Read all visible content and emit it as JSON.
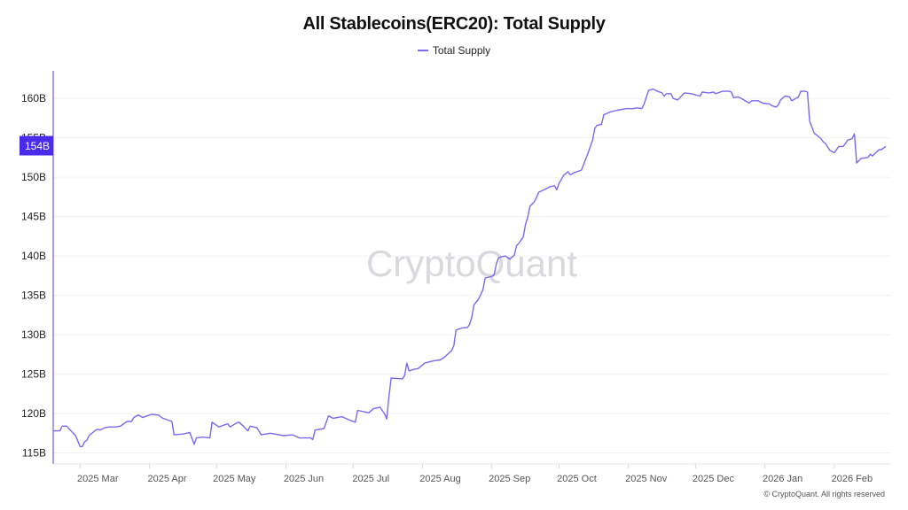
{
  "chart_data": {
    "type": "line",
    "title": "All Stablecoins(ERC20): Total Supply",
    "legend": [
      "Total Supply"
    ],
    "legend_position": "top-center",
    "xlabel": "",
    "ylabel": "",
    "x_unit": "days since 2025-03-01",
    "xlim": [
      -12,
      362
    ],
    "ylim": [
      113.6,
      163.5
    ],
    "grid": true,
    "color": "#7b68ee",
    "y_ticks": [
      {
        "value": 115,
        "label": "115B"
      },
      {
        "value": 120,
        "label": "120B"
      },
      {
        "value": 125,
        "label": "125B"
      },
      {
        "value": 130,
        "label": "130B"
      },
      {
        "value": 135,
        "label": "135B"
      },
      {
        "value": 140,
        "label": "140B"
      },
      {
        "value": 145,
        "label": "145B"
      },
      {
        "value": 150,
        "label": "150B"
      },
      {
        "value": 155,
        "label": "155B"
      },
      {
        "value": 160,
        "label": "160B"
      }
    ],
    "x_ticks": [
      {
        "value": 0,
        "label": "2025 Mar"
      },
      {
        "value": 31,
        "label": "2025 Apr"
      },
      {
        "value": 61,
        "label": "2025 May"
      },
      {
        "value": 92,
        "label": "2025 Jun"
      },
      {
        "value": 122,
        "label": "2025 Jul"
      },
      {
        "value": 153,
        "label": "2025 Aug"
      },
      {
        "value": 184,
        "label": "2025 Sep"
      },
      {
        "value": 214,
        "label": "2025 Oct"
      },
      {
        "value": 245,
        "label": "2025 Nov"
      },
      {
        "value": 275,
        "label": "2025 Dec"
      },
      {
        "value": 306,
        "label": "2026 Jan"
      },
      {
        "value": 337,
        "label": "2026 Feb"
      }
    ],
    "current_value": {
      "value": 154,
      "label": "154B"
    },
    "series": [
      {
        "name": "Total Supply",
        "points": [
          [
            -12,
            117.8
          ],
          [
            -9,
            117.8
          ],
          [
            -8,
            118.4
          ],
          [
            -6,
            118.4
          ],
          [
            -2,
            117.2
          ],
          [
            -1,
            116.5
          ],
          [
            0,
            115.8
          ],
          [
            1,
            115.8
          ],
          [
            2,
            116.4
          ],
          [
            3,
            116.6
          ],
          [
            4,
            117.2
          ],
          [
            7,
            117.9
          ],
          [
            8,
            118.0
          ],
          [
            9,
            117.9
          ],
          [
            11,
            118.2
          ],
          [
            13,
            118.3
          ],
          [
            16,
            118.3
          ],
          [
            18,
            118.4
          ],
          [
            21,
            119.0
          ],
          [
            23,
            119.0
          ],
          [
            24,
            119.5
          ],
          [
            26,
            119.8
          ],
          [
            28,
            119.5
          ],
          [
            30,
            119.7
          ],
          [
            32,
            119.9
          ],
          [
            35,
            119.8
          ],
          [
            37,
            119.4
          ],
          [
            41,
            119.0
          ],
          [
            42,
            117.3
          ],
          [
            46,
            117.4
          ],
          [
            49,
            117.6
          ],
          [
            51,
            116.1
          ],
          [
            52,
            116.9
          ],
          [
            55,
            117.0
          ],
          [
            58,
            116.9
          ],
          [
            59,
            118.9
          ],
          [
            62,
            118.3
          ],
          [
            66,
            118.7
          ],
          [
            67,
            118.3
          ],
          [
            70,
            118.8
          ],
          [
            71,
            118.9
          ],
          [
            73,
            118.4
          ],
          [
            75,
            117.8
          ],
          [
            76,
            118.4
          ],
          [
            79,
            118.2
          ],
          [
            81,
            117.3
          ],
          [
            85,
            117.5
          ],
          [
            91,
            117.2
          ],
          [
            95,
            117.3
          ],
          [
            98,
            116.9
          ],
          [
            103,
            116.9
          ],
          [
            104,
            116.7
          ],
          [
            105,
            117.9
          ],
          [
            109,
            118.1
          ],
          [
            111,
            119.7
          ],
          [
            113,
            119.4
          ],
          [
            117,
            119.6
          ],
          [
            121,
            119.1
          ],
          [
            123,
            118.9
          ],
          [
            124,
            120.4
          ],
          [
            129,
            120.1
          ],
          [
            131,
            120.6
          ],
          [
            134,
            120.8
          ],
          [
            136,
            120.0
          ],
          [
            137,
            119.3
          ],
          [
            138,
            122.1
          ],
          [
            139,
            124.5
          ],
          [
            144,
            124.4
          ],
          [
            145,
            124.8
          ],
          [
            146,
            126.4
          ],
          [
            147,
            125.4
          ],
          [
            149,
            125.6
          ],
          [
            151,
            125.7
          ],
          [
            154,
            126.4
          ],
          [
            158,
            126.7
          ],
          [
            161,
            126.8
          ],
          [
            163,
            127.2
          ],
          [
            166,
            128.0
          ],
          [
            167,
            128.6
          ],
          [
            168,
            130.6
          ],
          [
            171,
            130.9
          ],
          [
            173,
            130.9
          ],
          [
            174,
            131.3
          ],
          [
            175,
            132.2
          ],
          [
            176,
            133.8
          ],
          [
            178,
            134.5
          ],
          [
            180,
            135.7
          ],
          [
            181,
            137.2
          ],
          [
            184,
            137.4
          ],
          [
            185,
            137.6
          ],
          [
            186,
            139.0
          ],
          [
            187,
            139.8
          ],
          [
            190,
            140.0
          ],
          [
            192,
            139.6
          ],
          [
            194,
            140.1
          ],
          [
            195,
            141.3
          ],
          [
            196,
            141.6
          ],
          [
            198,
            142.4
          ],
          [
            199,
            144.0
          ],
          [
            200,
            144.9
          ],
          [
            201,
            146.3
          ],
          [
            203,
            146.9
          ],
          [
            204,
            147.5
          ],
          [
            205,
            148.1
          ],
          [
            208,
            148.5
          ],
          [
            210,
            148.8
          ],
          [
            212,
            148.9
          ],
          [
            213,
            148.4
          ],
          [
            214,
            149.2
          ],
          [
            216,
            150.2
          ],
          [
            218,
            150.7
          ],
          [
            219,
            150.3
          ],
          [
            221,
            150.6
          ],
          [
            223,
            150.8
          ],
          [
            224,
            150.9
          ],
          [
            225,
            151.6
          ],
          [
            227,
            153.1
          ],
          [
            229,
            154.7
          ],
          [
            230,
            156.2
          ],
          [
            231,
            156.6
          ],
          [
            233,
            156.7
          ],
          [
            234,
            157.9
          ],
          [
            237,
            158.3
          ],
          [
            240,
            158.5
          ],
          [
            244,
            158.7
          ],
          [
            247,
            158.7
          ],
          [
            249,
            158.8
          ],
          [
            251,
            158.7
          ],
          [
            252,
            159.3
          ],
          [
            254,
            161.0
          ],
          [
            256,
            161.2
          ],
          [
            258,
            160.9
          ],
          [
            260,
            160.7
          ],
          [
            261,
            160.3
          ],
          [
            262,
            160.6
          ],
          [
            264,
            160.6
          ],
          [
            265,
            160.0
          ],
          [
            267,
            159.8
          ],
          [
            268,
            160.1
          ],
          [
            270,
            160.7
          ],
          [
            273,
            160.6
          ],
          [
            277,
            160.3
          ],
          [
            278,
            160.8
          ],
          [
            281,
            160.7
          ],
          [
            283,
            160.8
          ],
          [
            284,
            160.6
          ],
          [
            287,
            160.9
          ],
          [
            290,
            160.9
          ],
          [
            291,
            160.8
          ],
          [
            292,
            160.1
          ],
          [
            294,
            160.2
          ],
          [
            296,
            159.9
          ],
          [
            299,
            159.4
          ],
          [
            300,
            159.7
          ],
          [
            303,
            159.7
          ],
          [
            305,
            159.4
          ],
          [
            308,
            159.3
          ],
          [
            309,
            159.1
          ],
          [
            311,
            158.9
          ],
          [
            312,
            159.2
          ],
          [
            313,
            159.8
          ],
          [
            315,
            160.3
          ],
          [
            317,
            160.2
          ],
          [
            318,
            159.7
          ],
          [
            321,
            160.2
          ],
          [
            322,
            160.9
          ],
          [
            324,
            160.9
          ],
          [
            325,
            160.8
          ],
          [
            326,
            157.1
          ],
          [
            328,
            155.6
          ],
          [
            331,
            154.9
          ],
          [
            332,
            154.5
          ],
          [
            333,
            154.3
          ],
          [
            335,
            153.4
          ],
          [
            337,
            153.1
          ],
          [
            339,
            153.9
          ],
          [
            341,
            153.9
          ],
          [
            343,
            154.7
          ],
          [
            345,
            154.9
          ],
          [
            346,
            155.5
          ],
          [
            347,
            151.8
          ],
          [
            349,
            152.4
          ],
          [
            352,
            152.5
          ],
          [
            353,
            152.9
          ],
          [
            354,
            152.7
          ],
          [
            357,
            153.5
          ],
          [
            358,
            153.5
          ],
          [
            360,
            153.9
          ]
        ]
      }
    ]
  },
  "watermark": "CryptoQuant",
  "copyright": "© CryptoQuant. All rights reserved"
}
